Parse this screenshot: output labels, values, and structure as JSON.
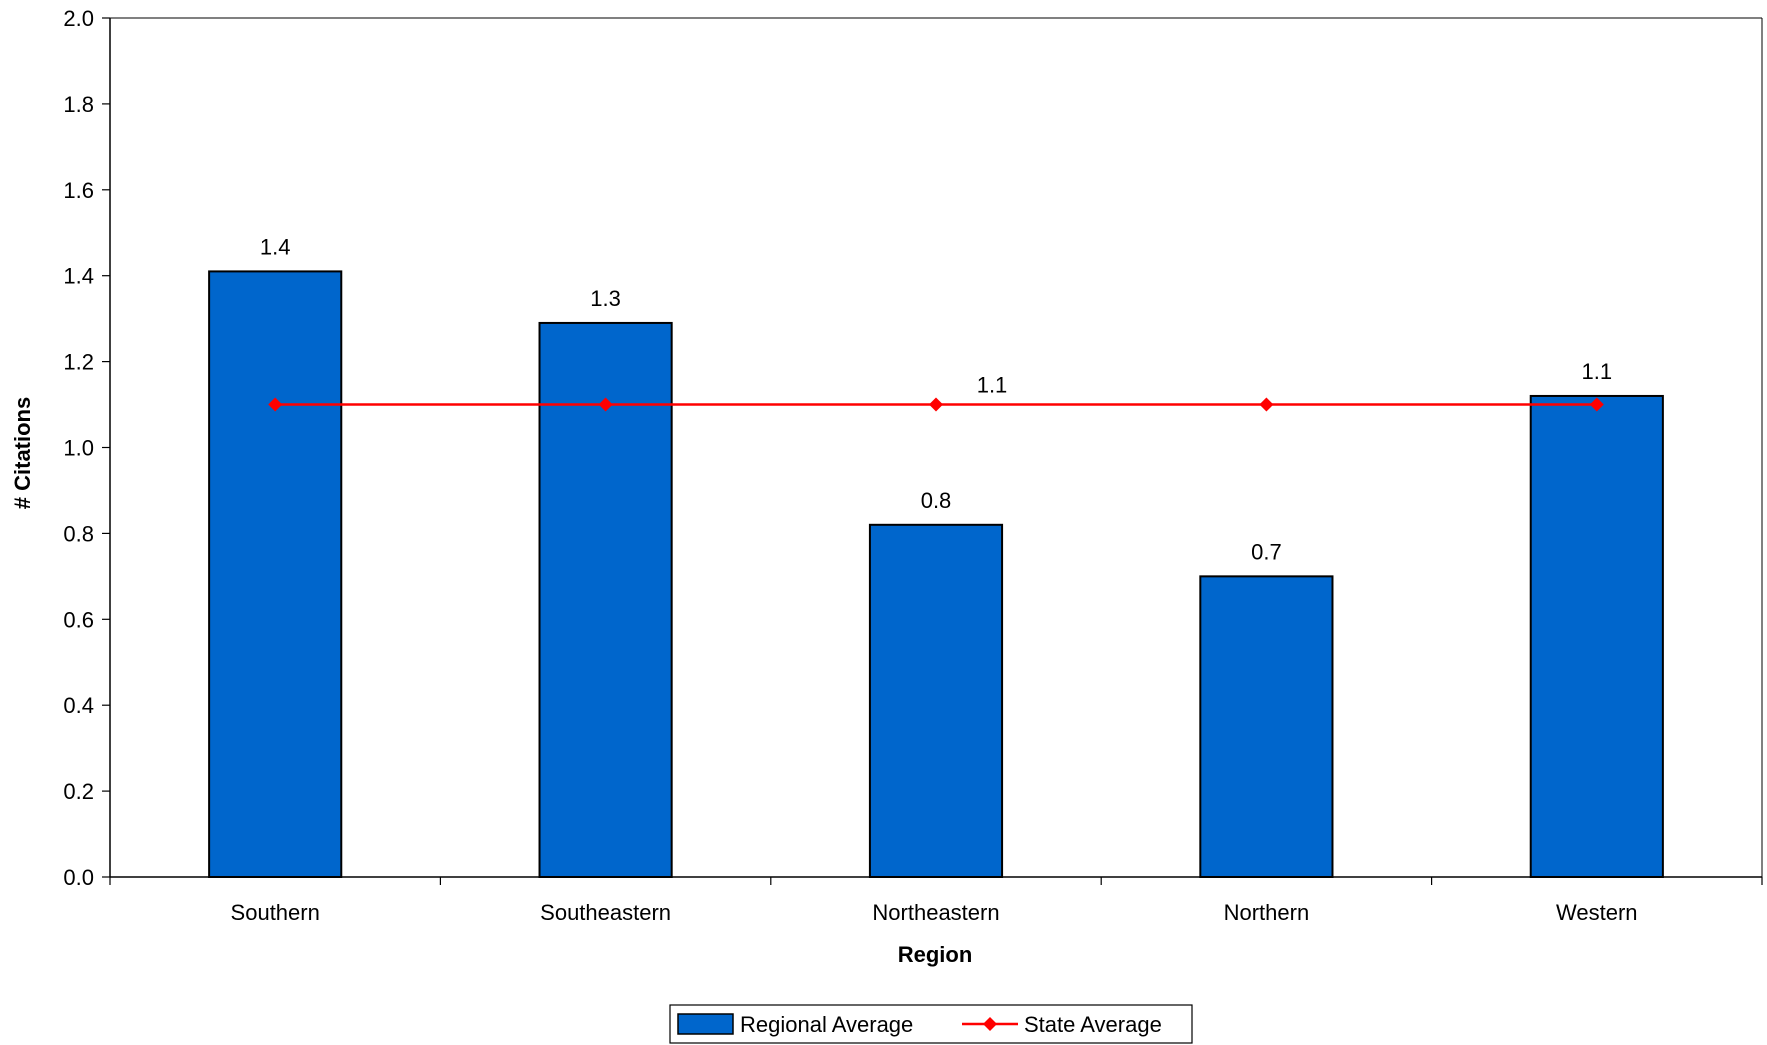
{
  "chart_data": {
    "type": "bar",
    "categories": [
      "Southern",
      "Southeastern",
      "Northeastern",
      "Northern",
      "Western"
    ],
    "series": [
      {
        "name": "Regional Average",
        "kind": "bar",
        "color": "#0066CC",
        "values": [
          1.41,
          1.29,
          0.82,
          0.7,
          1.12
        ],
        "labels": [
          "1.4",
          "1.3",
          "0.8",
          "0.7",
          "1.1"
        ]
      },
      {
        "name": "State Average",
        "kind": "line",
        "color": "#FF0000",
        "marker": "diamond",
        "values": [
          1.1,
          1.1,
          1.1,
          1.1,
          1.1
        ],
        "label": "1.1",
        "label_category_index": 2
      }
    ],
    "xlabel": "Region",
    "ylabel": "# Citations",
    "ylim": [
      0,
      2.0
    ],
    "yticks": [
      "0.0",
      "0.2",
      "0.4",
      "0.6",
      "0.8",
      "1.0",
      "1.2",
      "1.4",
      "1.6",
      "1.8",
      "2.0"
    ],
    "grid": false,
    "legend_position": "bottom"
  }
}
